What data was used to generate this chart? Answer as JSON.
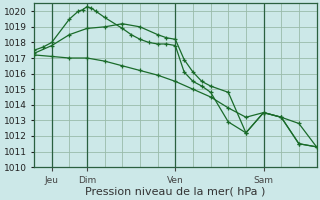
{
  "bg_color": "#cce8e8",
  "grid_color": "#99bbaa",
  "line_color": "#1a6b2a",
  "xlabel": "Pression niveau de la mer( hPa )",
  "ylim": [
    1010,
    1020.5
  ],
  "yticks": [
    1010,
    1011,
    1012,
    1013,
    1014,
    1015,
    1016,
    1017,
    1018,
    1019,
    1020
  ],
  "xlim": [
    0,
    64
  ],
  "xtick_positions": [
    4,
    12,
    32,
    52
  ],
  "xtick_labels": [
    "Jeu",
    "Dim",
    "Ven",
    "Sam"
  ],
  "vline_positions": [
    4,
    12,
    32,
    52
  ],
  "series1_x": [
    0,
    2,
    4,
    8,
    10,
    11,
    12,
    13,
    14,
    16,
    20,
    22,
    24,
    26,
    28,
    30,
    32,
    34,
    36,
    38,
    40,
    44,
    48,
    52,
    56,
    60,
    64
  ],
  "series1_y": [
    1017.5,
    1017.7,
    1018.0,
    1019.5,
    1020.0,
    1020.1,
    1020.3,
    1020.2,
    1020.0,
    1019.6,
    1018.9,
    1018.5,
    1018.2,
    1018.0,
    1017.9,
    1017.9,
    1017.8,
    1016.1,
    1015.5,
    1015.2,
    1014.8,
    1012.9,
    1012.2,
    1013.5,
    1013.2,
    1011.5,
    1011.3
  ],
  "series2_x": [
    0,
    4,
    8,
    12,
    16,
    20,
    24,
    28,
    30,
    32,
    34,
    36,
    38,
    40,
    44,
    48,
    52,
    56,
    60,
    64
  ],
  "series2_y": [
    1017.3,
    1017.8,
    1018.5,
    1018.9,
    1019.0,
    1019.2,
    1019.0,
    1018.5,
    1018.3,
    1018.2,
    1016.9,
    1016.1,
    1015.5,
    1015.2,
    1014.8,
    1012.2,
    1013.5,
    1013.2,
    1011.5,
    1011.3
  ],
  "series3_x": [
    0,
    4,
    8,
    12,
    16,
    20,
    24,
    28,
    32,
    36,
    40,
    44,
    48,
    52,
    56,
    60,
    64
  ],
  "series3_y": [
    1017.2,
    1017.1,
    1017.0,
    1017.0,
    1016.8,
    1016.5,
    1016.2,
    1015.9,
    1015.5,
    1015.0,
    1014.5,
    1013.8,
    1013.2,
    1013.5,
    1013.2,
    1012.8,
    1011.3
  ],
  "xlabel_fontsize": 8,
  "tick_fontsize": 6.5
}
